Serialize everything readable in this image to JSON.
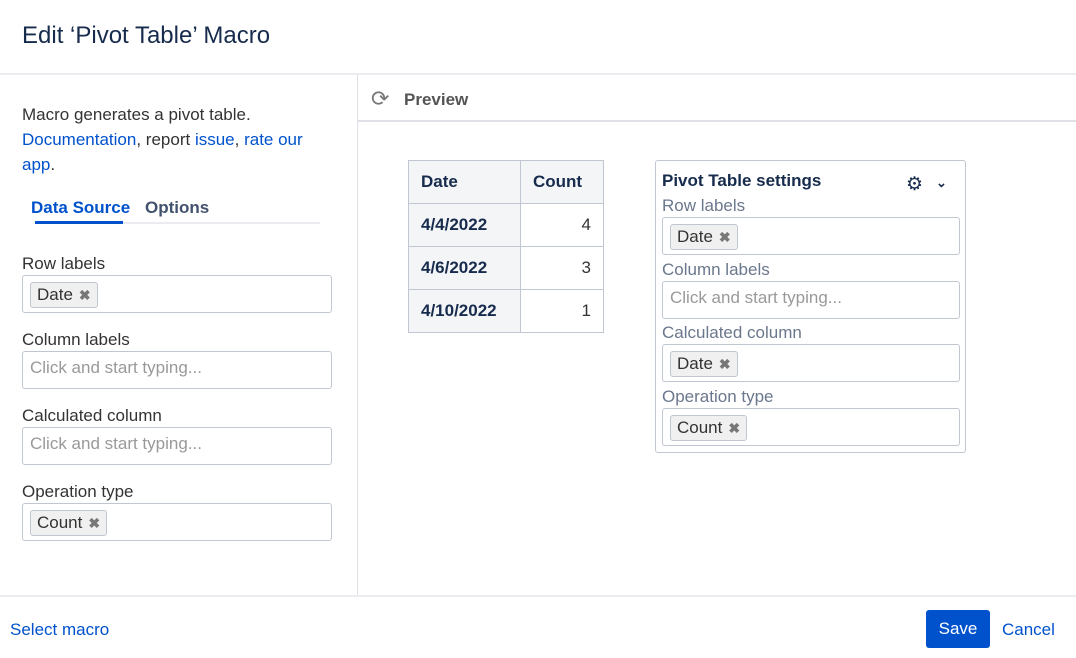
{
  "dialog": {
    "title": "Edit ‘Pivot Table’ Macro"
  },
  "left": {
    "desc_text": "Macro generates a pivot table.",
    "doc_link": "Documentation",
    "report_text": ", report ",
    "issue_link": "issue",
    "comma": ", ",
    "rate_link": "rate our app",
    "period": ".",
    "tabs": [
      {
        "label": "Data Source",
        "active": true
      },
      {
        "label": "Options",
        "active": false
      }
    ],
    "fields": {
      "row_labels": {
        "label": "Row labels",
        "tags": [
          "Date"
        ]
      },
      "column_labels": {
        "label": "Column labels",
        "placeholder": "Click and start typing..."
      },
      "calculated_column": {
        "label": "Calculated column",
        "placeholder": "Click and start typing..."
      },
      "operation_type": {
        "label": "Operation type",
        "tags": [
          "Count"
        ]
      }
    }
  },
  "preview": {
    "title": "Preview",
    "icon": "refresh-icon",
    "table": {
      "headers": [
        "Date",
        "Count"
      ],
      "rows": [
        [
          "4/4/2022",
          "4"
        ],
        [
          "4/6/2022",
          "3"
        ],
        [
          "4/10/2022",
          "1"
        ]
      ]
    },
    "settings": {
      "title": "Pivot Table settings",
      "row_labels": {
        "label": "Row labels",
        "tags": [
          "Date"
        ]
      },
      "column_labels": {
        "label": "Column labels",
        "placeholder": "Click and start typing..."
      },
      "calculated_column": {
        "label": "Calculated column",
        "tags": [
          "Date"
        ]
      },
      "operation_type": {
        "label": "Operation type",
        "tags": [
          "Count"
        ]
      }
    }
  },
  "footer": {
    "select_macro": "Select macro",
    "save": "Save",
    "cancel": "Cancel"
  },
  "colors": {
    "primary": "#0052cc"
  }
}
